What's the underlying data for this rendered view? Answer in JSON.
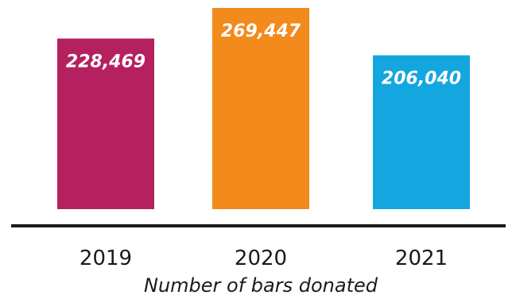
{
  "chart_data": {
    "type": "bar",
    "title": "",
    "xlabel": "Number of bars donated",
    "ylabel": "",
    "categories": [
      "2019",
      "2020",
      "2021"
    ],
    "values": [
      228469,
      269447,
      206040
    ],
    "value_labels": [
      "228,469",
      "269,447",
      "206,040"
    ],
    "colors": [
      "#b5215e",
      "#f28a1c",
      "#14a6df"
    ],
    "ylim": [
      0,
      269447
    ],
    "grid": false,
    "legend": "none"
  },
  "colors": {
    "baseline": "#1a1a1a",
    "value_label": "#ffffff",
    "text": "#1a1a1a"
  }
}
